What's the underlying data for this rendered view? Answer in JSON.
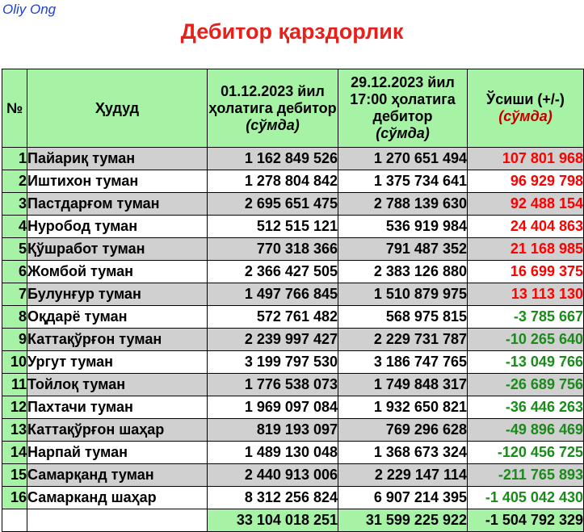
{
  "brand": "Oliy Ong",
  "title": "Дебитор қарздорлик",
  "headers": {
    "num": "№",
    "district": "Ҳудуд",
    "col1_main": "01.12.2023 йил ҳолатига дебитор",
    "col1_unit": "(сўмда)",
    "col2_main": "29.12.2023 йил 17:00 ҳолатига дебитор",
    "col2_unit": "(сўмда)",
    "col3_main": "Ўсиши (+/-)",
    "col3_unit": "(сўмда)"
  },
  "rows": [
    {
      "n": "1",
      "name": "Пайариқ туман",
      "v1": "1 162 849 526",
      "v2": "1 270 651 494",
      "d": "107 801 968",
      "sign": "pos"
    },
    {
      "n": "2",
      "name": "Иштихон туман",
      "v1": "1 278 804 842",
      "v2": "1 375 734 641",
      "d": "96 929 798",
      "sign": "pos"
    },
    {
      "n": "3",
      "name": "Пастдарғом туман",
      "v1": "2 695 651 475",
      "v2": "2 788 139 630",
      "d": "92 488 154",
      "sign": "pos"
    },
    {
      "n": "4",
      "name": "Нуробод туман",
      "v1": "512 515 121",
      "v2": "536 919 984",
      "d": "24 404 863",
      "sign": "pos"
    },
    {
      "n": "5",
      "name": "Қўшработ туман",
      "v1": "770 318 366",
      "v2": "791 487 352",
      "d": "21 168 985",
      "sign": "pos"
    },
    {
      "n": "6",
      "name": "Жомбой туман",
      "v1": "2 366 427 505",
      "v2": "2 383 126 880",
      "d": "16 699 375",
      "sign": "pos"
    },
    {
      "n": "7",
      "name": "Булунғур туман",
      "v1": "1 497 766 845",
      "v2": "1 510 879 975",
      "d": "13 113 130",
      "sign": "pos"
    },
    {
      "n": "8",
      "name": "Оқдарё туман",
      "v1": "572 761 482",
      "v2": "568 975 815",
      "d": "-3 785 667",
      "sign": "neg"
    },
    {
      "n": "9",
      "name": "Каттақўрғон туман",
      "v1": "2 239 997 427",
      "v2": "2 229 731 787",
      "d": "-10 265 640",
      "sign": "neg"
    },
    {
      "n": "10",
      "name": "Ургут туман",
      "v1": "3 199 797 530",
      "v2": "3 186 747 765",
      "d": "-13 049 766",
      "sign": "neg"
    },
    {
      "n": "11",
      "name": "Тойлоқ туман",
      "v1": "1 776 538 073",
      "v2": "1 749 848 317",
      "d": "-26 689 756",
      "sign": "neg"
    },
    {
      "n": "12",
      "name": "Пахтачи туман",
      "v1": "1 969 097 084",
      "v2": "1 932 650 821",
      "d": "-36 446 263",
      "sign": "neg"
    },
    {
      "n": "13",
      "name": "Каттақўрғон шаҳар",
      "v1": "819 193 097",
      "v2": "769 296 628",
      "d": "-49 896 469",
      "sign": "neg"
    },
    {
      "n": "14",
      "name": "Нарпай туман",
      "v1": "1 489 130 048",
      "v2": "1 368 673 324",
      "d": "-120 456 725",
      "sign": "neg"
    },
    {
      "n": "15",
      "name": "Самарқанд туман",
      "v1": "2 440 913 006",
      "v2": "2 229 147 114",
      "d": "-211 765 893",
      "sign": "neg"
    },
    {
      "n": "16",
      "name": "Самарканд шаҳар",
      "v1": "8 312 256 824",
      "v2": "6 907 214 395",
      "d": "-1 405 042 430",
      "sign": "neg"
    }
  ],
  "total": {
    "v1": "33 104 018 251",
    "v2": "31 599 225 922",
    "d": "-1 504 792 329"
  },
  "colors": {
    "header_bg": "#a6f3a6",
    "grey_row_bg": "#d0d0d0",
    "positive": "#ff0000",
    "negative": "#1a8a1a",
    "title": "#e8201c",
    "brand": "#1f3fd0"
  }
}
